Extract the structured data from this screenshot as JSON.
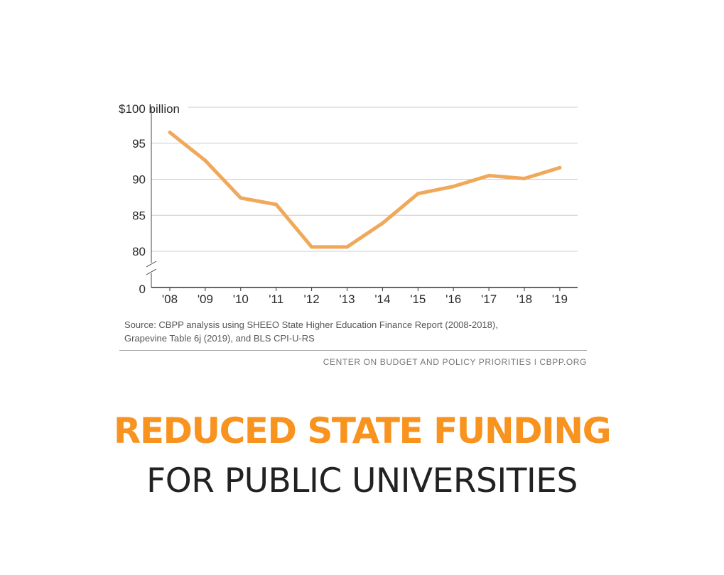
{
  "chart_data": {
    "type": "line",
    "title": "",
    "xlabel": "",
    "ylabel": "",
    "y_unit_label": "$100 billion",
    "x": [
      "'08",
      "'09",
      "'10",
      "'11",
      "'12",
      "'13",
      "'14",
      "'15",
      "'16",
      "'17",
      "'18",
      "'19"
    ],
    "series": [
      {
        "values": [
          96.5,
          92.6,
          87.4,
          86.5,
          80.6,
          80.6,
          83.9,
          88.0,
          89.0,
          90.5,
          90.1,
          91.6
        ]
      }
    ],
    "y_ticks": [
      "95",
      "90",
      "85",
      "80"
    ],
    "y_zero_label": "0",
    "ylim": [
      80,
      100
    ],
    "axis_break": true,
    "grid": true,
    "line_color": "#f0a85a"
  },
  "source_note": {
    "line1": "Source: CBPP analysis using SHEEO State Higher Education Finance Report (2008-2018),",
    "line2": "Grapevine Table 6j (2019), and BLS CPI-U-RS"
  },
  "credit": "CENTER ON BUDGET AND POLICY PRIORITIES | CBPP.ORG",
  "headline": "REDUCED STATE FUNDING",
  "subheadline": "FOR PUBLIC UNIVERSITIES",
  "colors": {
    "headline": "#f7931e",
    "subheadline": "#222222",
    "gridline": "#cccccc"
  }
}
